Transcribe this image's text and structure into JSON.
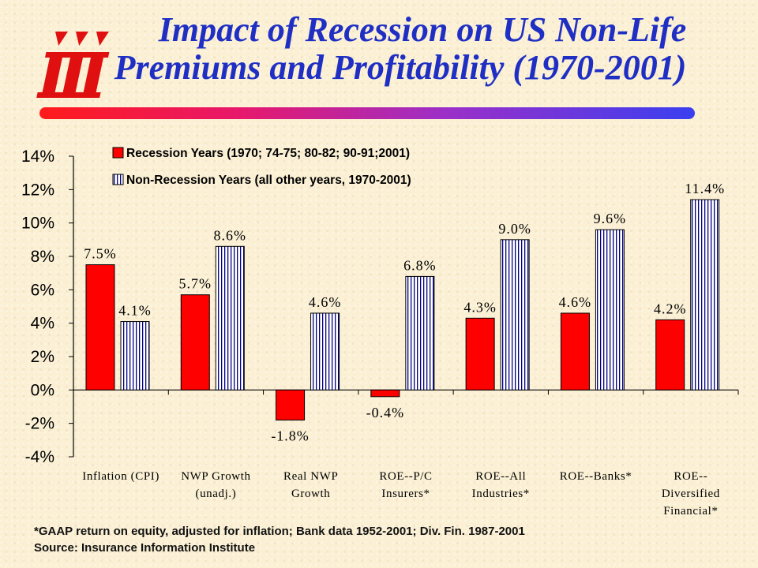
{
  "header": {
    "title_line1": "Impact of Recession on US Non-Life",
    "title_line2": "Premiums and Profitability (1970-2001)"
  },
  "logo": {
    "icon": "iii-logo-icon",
    "color": "#e01010"
  },
  "colors": {
    "title": "#1f2fc4",
    "recession": "#ff0000",
    "non_recession_fill": "#ffffff",
    "non_recession_stripe": "#000080",
    "rule_gradient": [
      "#ff1b1b",
      "#e8186a",
      "#9c2fc8",
      "#3a3ff0"
    ]
  },
  "chart_data": {
    "type": "bar",
    "title": "",
    "categories": [
      [
        "Inflation (CPI)"
      ],
      [
        "NWP Growth",
        "(unadj.)"
      ],
      [
        "Real NWP",
        "Growth"
      ],
      [
        "ROE--P/C",
        "Insurers*"
      ],
      [
        "ROE--All",
        "Industries*"
      ],
      [
        "ROE--Banks*"
      ],
      [
        "ROE--",
        "Diversified",
        "Financial*"
      ]
    ],
    "series": [
      {
        "name": "Recession Years (1970; 74-75; 80-82; 90-91;2001)",
        "style": "solid",
        "values": [
          7.5,
          5.7,
          -1.8,
          -0.4,
          4.3,
          4.6,
          4.2
        ],
        "labels": [
          "7.5%",
          "5.7%",
          "-1.8%",
          "-0.4%",
          "4.3%",
          "4.6%",
          "4.2%"
        ]
      },
      {
        "name": "Non-Recession Years (all other years, 1970-2001)",
        "style": "vertical-stripes",
        "values": [
          4.1,
          8.6,
          4.6,
          6.8,
          9.0,
          9.6,
          11.4
        ],
        "labels": [
          "4.1%",
          "8.6%",
          "4.6%",
          "6.8%",
          "9.0%",
          "9.6%",
          "11.4%"
        ]
      }
    ],
    "ylim": [
      -4,
      14
    ],
    "yticks": [
      14,
      12,
      10,
      8,
      6,
      4,
      2,
      0,
      -2,
      -4
    ],
    "ytick_labels": [
      "14%",
      "12%",
      "10%",
      "8%",
      "6%",
      "4%",
      "2%",
      "0%",
      "-2%",
      "-4%"
    ],
    "xlabel": "",
    "ylabel": "",
    "grid": false,
    "legend_position": "top-left"
  },
  "footnote": {
    "line1": "*GAAP return on equity, adjusted for inflation; Bank data 1952-2001; Div. Fin. 1987-2001",
    "line2": "Source: Insurance Information Institute"
  }
}
